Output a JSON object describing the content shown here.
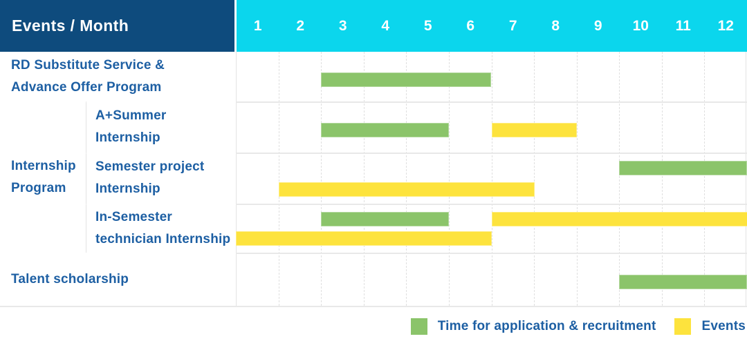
{
  "header": {
    "events_month_label": "Events / Month",
    "months": [
      "1",
      "2",
      "3",
      "4",
      "5",
      "6",
      "7",
      "8",
      "9",
      "10",
      "11",
      "12"
    ]
  },
  "colors": {
    "header_bg": "#0e4b7d",
    "months_bg": "#0bd6ed",
    "header_text": "#ffffff",
    "label_text": "#1d5fa3",
    "application_green": "#8bc46a",
    "events_yellow": "#fde33d"
  },
  "legend": [
    {
      "series": "application",
      "label": "Time for application & recruitment",
      "color": "#8bc46a"
    },
    {
      "series": "events",
      "label": "Events",
      "color": "#fde33d"
    }
  ],
  "chart_data": {
    "type": "gantt",
    "x_axis": {
      "label": "Month",
      "ticks": [
        1,
        2,
        3,
        4,
        5,
        6,
        7,
        8,
        9,
        10,
        11,
        12
      ],
      "range": [
        1,
        12
      ]
    },
    "series": {
      "application": {
        "label": "Time for application & recruitment",
        "color": "#8bc46a"
      },
      "events": {
        "label": "Events",
        "color": "#fde33d"
      }
    },
    "rows": [
      {
        "group": null,
        "label": "RD Substitute Service & Advance Offer Program",
        "label_lines": [
          "RD Substitute Service &",
          "Advance Offer Program"
        ],
        "bars": [
          {
            "series": "application",
            "start_month": 3,
            "end_month": 6,
            "lane": "mid"
          }
        ]
      },
      {
        "group": "Internship Program",
        "label": "A+Summer Internship",
        "label_lines": [
          "A+Summer",
          "Internship"
        ],
        "bars": [
          {
            "series": "application",
            "start_month": 3,
            "end_month": 5,
            "lane": "mid"
          },
          {
            "series": "events",
            "start_month": 7,
            "end_month": 8,
            "lane": "mid"
          }
        ]
      },
      {
        "group": "Internship Program",
        "label": "Semester project Internship",
        "label_lines": [
          "Semester project",
          "Internship"
        ],
        "bars": [
          {
            "series": "application",
            "start_month": 10,
            "end_month": 12,
            "lane": "top"
          },
          {
            "series": "events",
            "start_month": 2,
            "end_month": 7,
            "lane": "bottom"
          }
        ]
      },
      {
        "group": "Internship Program",
        "label": "In-Semester technician Internship",
        "label_lines": [
          "In-Semester",
          "technician Internship"
        ],
        "bars": [
          {
            "series": "application",
            "start_month": 3,
            "end_month": 5,
            "lane": "top"
          },
          {
            "series": "events",
            "start_month": 7,
            "end_month": 12,
            "lane": "top"
          },
          {
            "series": "events",
            "start_month": 1,
            "end_month": 6,
            "lane": "bottom"
          }
        ]
      },
      {
        "group": null,
        "label": "Talent scholarship",
        "label_lines": [
          "Talent scholarship"
        ],
        "bars": [
          {
            "series": "application",
            "start_month": 10,
            "end_month": 12,
            "lane": "mid"
          }
        ]
      }
    ],
    "group_label_lines": [
      "Internship",
      "Program"
    ]
  }
}
